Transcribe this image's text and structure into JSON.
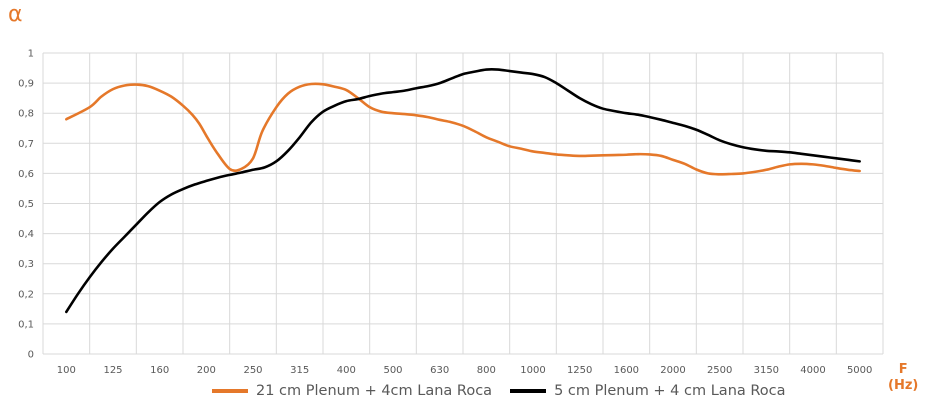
{
  "colors": {
    "series1": "#E5782A",
    "series2": "#000000",
    "accent": "#E5782A",
    "grid": "#d9d9d9",
    "axis_text": "#595959"
  },
  "chart_data": {
    "type": "line",
    "ylabel": "α",
    "xlabel": "F (Hz)",
    "xlabel_parts": [
      "F",
      "(Hz)"
    ],
    "categories": [
      "100",
      "125",
      "160",
      "200",
      "250",
      "315",
      "400",
      "500",
      "630",
      "800",
      "1000",
      "1250",
      "1600",
      "2000",
      "2500",
      "3150",
      "4000",
      "5000"
    ],
    "ylim": [
      0,
      1
    ],
    "yticks": [
      "0",
      "0,1",
      "0,2",
      "0,3",
      "0,4",
      "0,5",
      "0,6",
      "0,7",
      "0,8",
      "0,9",
      "1"
    ],
    "grid": true,
    "legend_position": "bottom",
    "series": [
      {
        "name": "21 cm Plenum + 4cm Lana Roca",
        "color": "#E5782A",
        "x": [
          0,
          0.5,
          0.75,
          1,
          1.25,
          1.5,
          1.75,
          2,
          2.25,
          2.5,
          2.7,
          2.85,
          3,
          3.2,
          3.5,
          3.75,
          4,
          4.2,
          4.5,
          4.75,
          5,
          5.25,
          5.5,
          5.75,
          6,
          6.25,
          6.5,
          6.75,
          7,
          7.25,
          7.5,
          7.75,
          8,
          8.25,
          8.5,
          8.75,
          9,
          9.25,
          9.5,
          9.75,
          10,
          10.25,
          10.5,
          10.75,
          11,
          11.25,
          11.5,
          11.75,
          12,
          12.25,
          12.5,
          12.75,
          13,
          13.25,
          13.5,
          13.75,
          14,
          14.25,
          14.5,
          14.75,
          15,
          15.25,
          15.5,
          15.75,
          16,
          16.25,
          16.5,
          16.75,
          17
        ],
        "values": [
          0.78,
          0.82,
          0.855,
          0.88,
          0.892,
          0.895,
          0.89,
          0.875,
          0.855,
          0.825,
          0.795,
          0.765,
          0.725,
          0.675,
          0.615,
          0.615,
          0.65,
          0.74,
          0.82,
          0.865,
          0.888,
          0.897,
          0.896,
          0.888,
          0.877,
          0.85,
          0.82,
          0.805,
          0.8,
          0.797,
          0.793,
          0.787,
          0.778,
          0.77,
          0.758,
          0.74,
          0.72,
          0.705,
          0.69,
          0.682,
          0.673,
          0.668,
          0.663,
          0.66,
          0.658,
          0.659,
          0.66,
          0.661,
          0.662,
          0.664,
          0.663,
          0.658,
          0.645,
          0.632,
          0.613,
          0.6,
          0.597,
          0.598,
          0.6,
          0.605,
          0.612,
          0.622,
          0.63,
          0.632,
          0.63,
          0.625,
          0.618,
          0.612,
          0.608
        ]
      },
      {
        "name": "5 cm Plenum + 4 cm Lana Roca",
        "color": "#000000",
        "x": [
          0,
          0.25,
          0.5,
          0.75,
          1,
          1.25,
          1.5,
          1.75,
          2,
          2.25,
          2.5,
          2.75,
          3,
          3.25,
          3.5,
          3.75,
          4,
          4.25,
          4.5,
          4.75,
          5,
          5.25,
          5.5,
          5.75,
          6,
          6.25,
          6.5,
          6.75,
          7,
          7.25,
          7.5,
          7.75,
          8,
          8.25,
          8.5,
          8.75,
          9,
          9.25,
          9.5,
          9.75,
          10,
          10.25,
          10.5,
          10.75,
          11,
          11.25,
          11.5,
          11.75,
          12,
          12.25,
          12.5,
          12.75,
          13,
          13.25,
          13.5,
          13.75,
          14,
          14.25,
          14.5,
          14.75,
          15,
          15.25,
          15.5,
          15.75,
          16,
          16.25,
          16.5,
          16.75,
          17
        ],
        "values": [
          0.14,
          0.2,
          0.255,
          0.305,
          0.35,
          0.39,
          0.43,
          0.47,
          0.505,
          0.53,
          0.548,
          0.563,
          0.575,
          0.586,
          0.595,
          0.603,
          0.612,
          0.62,
          0.64,
          0.675,
          0.72,
          0.77,
          0.805,
          0.825,
          0.84,
          0.847,
          0.857,
          0.865,
          0.87,
          0.875,
          0.883,
          0.89,
          0.9,
          0.915,
          0.93,
          0.938,
          0.945,
          0.945,
          0.94,
          0.935,
          0.93,
          0.92,
          0.9,
          0.875,
          0.85,
          0.83,
          0.815,
          0.807,
          0.8,
          0.795,
          0.787,
          0.778,
          0.768,
          0.758,
          0.745,
          0.728,
          0.71,
          0.697,
          0.687,
          0.68,
          0.675,
          0.673,
          0.67,
          0.665,
          0.66,
          0.655,
          0.65,
          0.645,
          0.64
        ]
      }
    ]
  }
}
